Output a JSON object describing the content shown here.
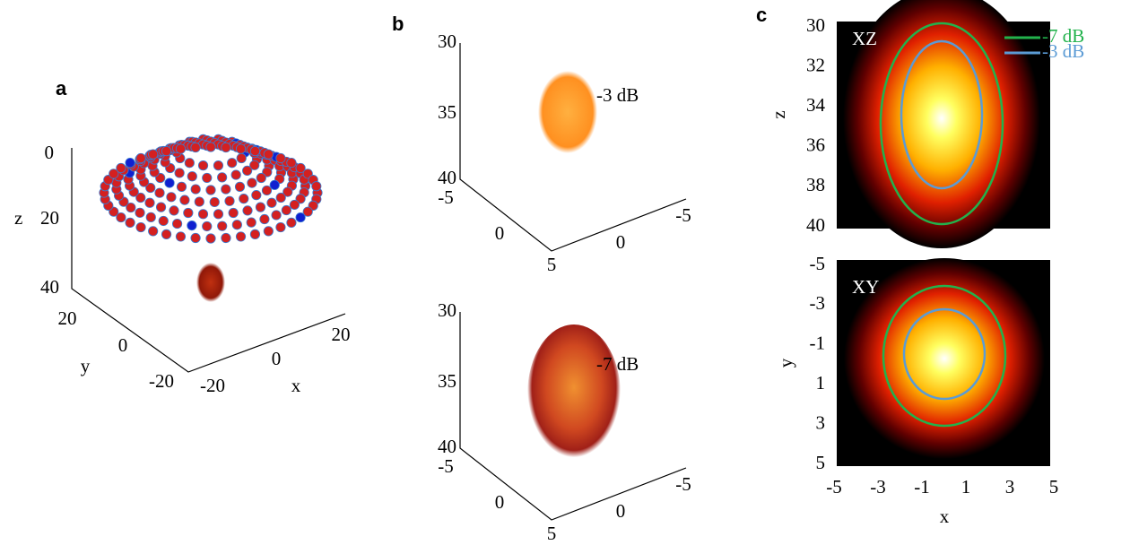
{
  "panels": [
    {
      "label": "a",
      "z_label": "z",
      "z_ticks": [
        0,
        20,
        40
      ],
      "y_label": "y",
      "y_ticks": [
        20,
        0,
        -20
      ],
      "x_label": "x",
      "x_ticks": [
        -20,
        0,
        20
      ]
    },
    {
      "label": "b",
      "plots": [
        {
          "annotation": "-3 dB",
          "z_ticks": [
            30,
            35,
            40
          ],
          "x_ticks": [
            -5,
            0,
            5
          ],
          "y_ticks": [
            0,
            -5
          ]
        },
        {
          "annotation": "-7 dB",
          "z_ticks": [
            30,
            35,
            40
          ],
          "x_ticks": [
            -5,
            0,
            5
          ],
          "y_ticks": [
            0,
            -5
          ]
        }
      ]
    },
    {
      "label": "c",
      "legend": [
        {
          "name": "-7 dB",
          "color": "#22b24c"
        },
        {
          "name": "-3 dB",
          "color": "#5b9bd5"
        }
      ],
      "plots": [
        {
          "title": "XZ",
          "y_label": "z",
          "y_ticks": [
            30,
            32,
            34,
            36,
            38,
            40
          ]
        },
        {
          "title": "XY",
          "y_label": "y",
          "y_ticks": [
            -5,
            -3,
            -1,
            1,
            3,
            5
          ],
          "x_label": "x",
          "x_ticks": [
            -5,
            -3,
            -1,
            1,
            3,
            5
          ]
        }
      ]
    }
  ]
}
